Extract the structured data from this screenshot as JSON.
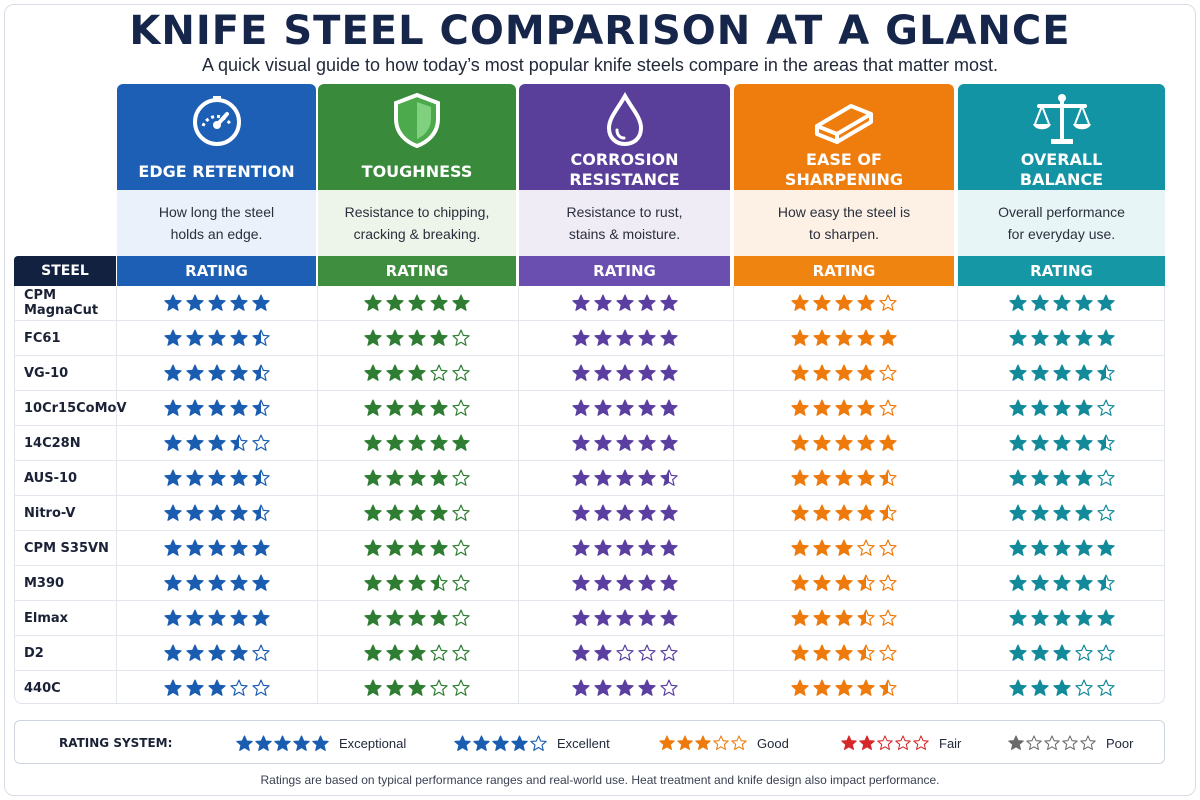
{
  "header": {
    "title": "KNIFE STEEL COMPARISON AT A GLANCE",
    "subtitle": "A quick visual guide to how today’s most popular knife steels compare in the areas that matter most."
  },
  "table": {
    "steel_header": "STEEL",
    "rating_label": "RATING",
    "columns": [
      {
        "key": "edge",
        "label": "EDGE RETENTION",
        "description": "How long the steel\nholds an edge.",
        "icon": "gauge-icon",
        "color": "#1d5fb4",
        "desc_bg": "#eaf1fa",
        "bar_color": "#1d5fb4",
        "star_color": "#1a5cb0"
      },
      {
        "key": "toughness",
        "label": "TOUGHNESS",
        "description": "Resistance to chipping,\ncracking & breaking.",
        "icon": "shield-icon",
        "color": "#3a8a3c",
        "desc_bg": "#edf5ea",
        "bar_color": "#3f8e3f",
        "star_color": "#2e7d32"
      },
      {
        "key": "corrosion",
        "label": "CORROSION\nRESISTANCE",
        "description": "Resistance to rust,\nstains & moisture.",
        "icon": "droplet-icon",
        "color": "#5a3f9a",
        "desc_bg": "#efecf6",
        "bar_color": "#6a4fb0",
        "star_color": "#5b3fa0"
      },
      {
        "key": "sharpening",
        "label": "EASE OF\nSHARPENING",
        "description": "How easy the steel is\nto sharpen.",
        "icon": "whetstone-icon",
        "color": "#ef7d0e",
        "desc_bg": "#fdf1e6",
        "bar_color": "#f08410",
        "star_color": "#ee7a0c"
      },
      {
        "key": "balance",
        "label": "OVERALL\nBALANCE",
        "description": "Overall performance\nfor everyday use.",
        "icon": "scales-icon",
        "color": "#1394a4",
        "desc_bg": "#e8f5f7",
        "bar_color": "#1597a6",
        "star_color": "#128a99"
      }
    ],
    "rows": [
      {
        "steel": "CPM MagnaCut",
        "ratings": [
          5,
          5,
          5,
          4,
          5
        ]
      },
      {
        "steel": "FC61",
        "ratings": [
          4.5,
          4,
          5,
          5,
          5
        ]
      },
      {
        "steel": "VG-10",
        "ratings": [
          4.5,
          3,
          5,
          4,
          4.5
        ]
      },
      {
        "steel": "10Cr15CoMoV",
        "ratings": [
          4.5,
          4,
          5,
          4,
          4
        ]
      },
      {
        "steel": "14C28N",
        "ratings": [
          3.5,
          5,
          5,
          5,
          4.5
        ]
      },
      {
        "steel": "AUS-10",
        "ratings": [
          4.5,
          4,
          4.5,
          4.5,
          4
        ]
      },
      {
        "steel": "Nitro-V",
        "ratings": [
          4.5,
          4,
          5,
          4.5,
          4
        ]
      },
      {
        "steel": "CPM S35VN",
        "ratings": [
          5,
          4,
          5,
          3,
          5
        ]
      },
      {
        "steel": "M390",
        "ratings": [
          5,
          3.5,
          5,
          3.5,
          4.5
        ]
      },
      {
        "steel": "Elmax",
        "ratings": [
          5,
          4,
          5,
          3.5,
          5
        ]
      },
      {
        "steel": "D2",
        "ratings": [
          4,
          3,
          2,
          3.5,
          3
        ]
      },
      {
        "steel": "440C",
        "ratings": [
          3,
          3,
          4,
          4.5,
          3
        ]
      }
    ]
  },
  "legend": {
    "title": "RATING SYSTEM:",
    "items": [
      {
        "stars": 5,
        "label": "Exceptional",
        "color": "#1a5cb0"
      },
      {
        "stars": 4,
        "label": "Excellent",
        "color": "#1a5cb0"
      },
      {
        "stars": 3,
        "label": "Good",
        "color": "#ee7a0c"
      },
      {
        "stars": 2,
        "label": "Fair",
        "color": "#d62828"
      },
      {
        "stars": 1,
        "label": "Poor",
        "color": "#6b6b6b"
      }
    ]
  },
  "footer": "Ratings are based on typical performance ranges and real-world use. Heat treatment and knife design also impact performance."
}
